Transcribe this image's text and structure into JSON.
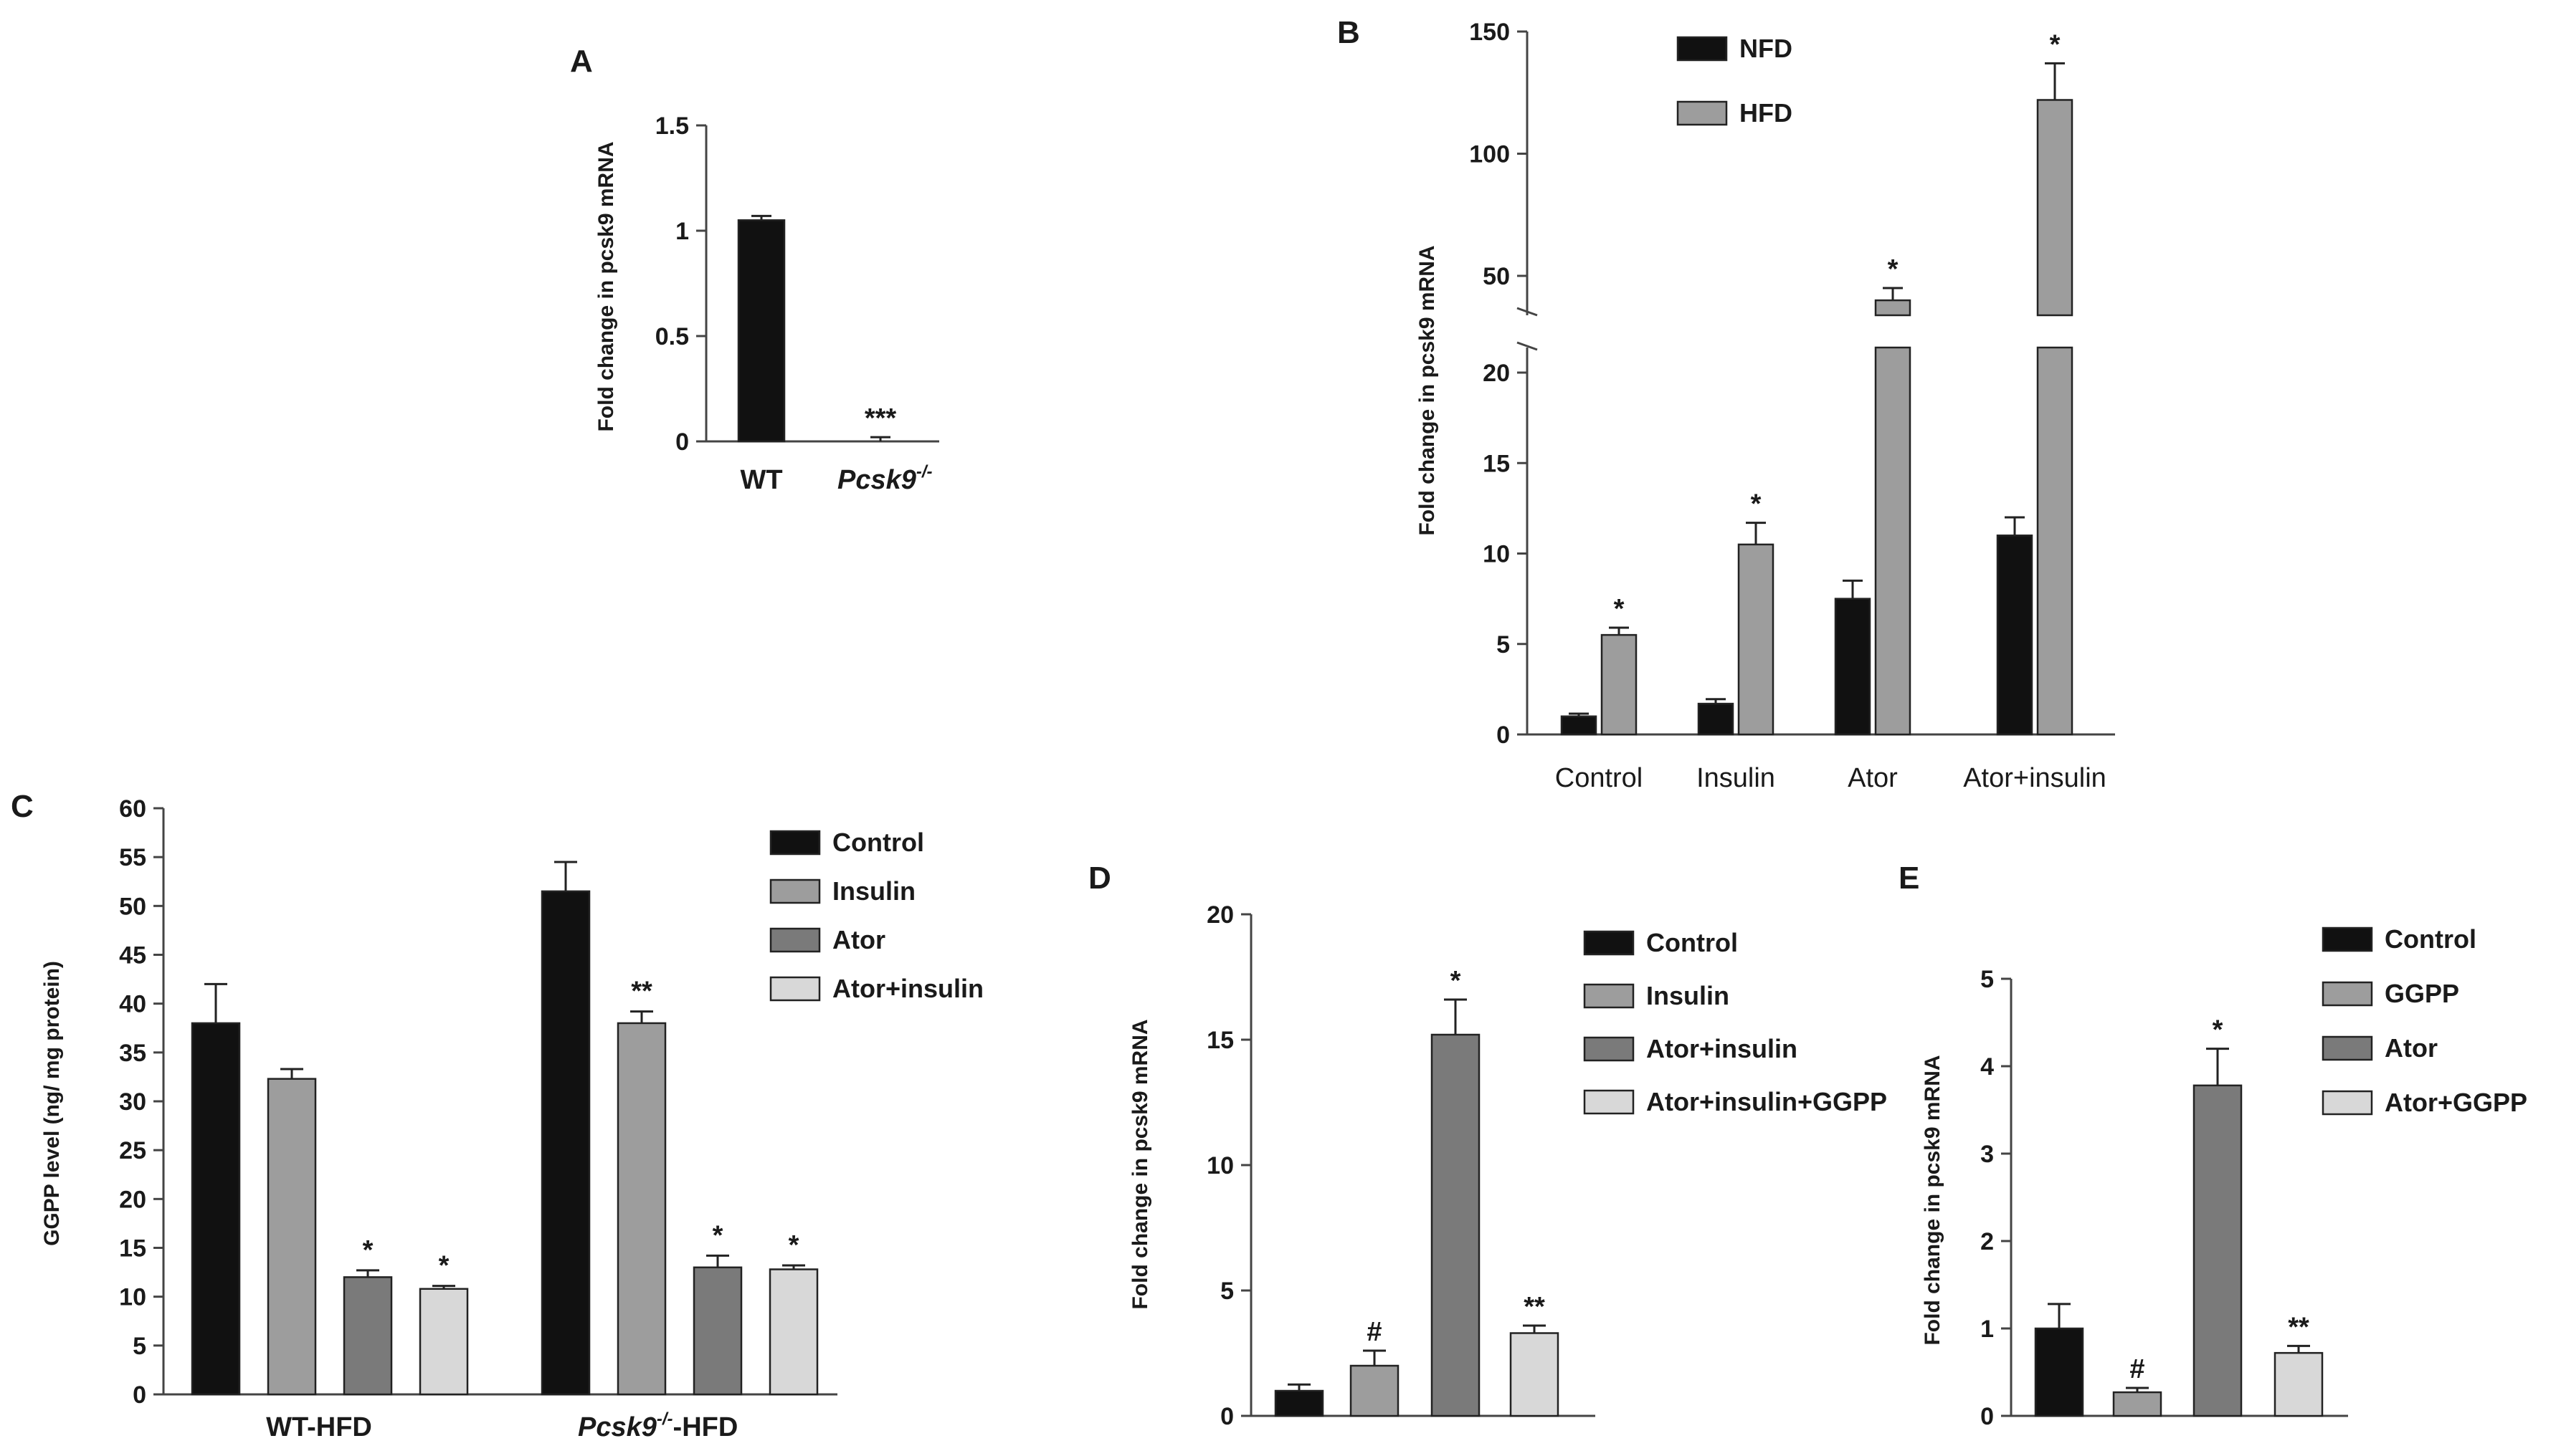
{
  "colors": {
    "black": "#111111",
    "grey_mid": "#9d9d9d",
    "grey_dark": "#7a7a7a",
    "grey_light": "#d8d8d8",
    "axis": "#444444"
  },
  "chart_data": [
    {
      "panel": "A",
      "type": "bar",
      "ylabel": "Fold change in pcsk9 mRNA",
      "ylim": [
        0,
        1.5
      ],
      "yticks": [
        "0",
        "0.5",
        "1",
        "1.5"
      ],
      "categories": [
        "WT",
        "Pcsk9"
      ],
      "category_suffix": [
        "",
        "-/-"
      ],
      "values": [
        1.05,
        0.0
      ],
      "errors": [
        0.02,
        0.02
      ],
      "colors": [
        "#111111",
        "#111111"
      ],
      "annotations": [
        "",
        "***"
      ]
    },
    {
      "panel": "B",
      "type": "bar",
      "ylabel": "Fold change in pcsk9 mRNA",
      "ylim": [
        0,
        150
      ],
      "axis_break": [
        20,
        50
      ],
      "yticks_lower": [
        "0",
        "5",
        "10",
        "15",
        "20"
      ],
      "yticks_upper": [
        "50",
        "100",
        "150"
      ],
      "categories": [
        "Control",
        "Insulin",
        "Ator",
        "Ator+insulin"
      ],
      "series": [
        {
          "name": "NFD",
          "color": "#111111",
          "values": [
            1.0,
            1.7,
            7.5,
            11.0
          ],
          "errors": [
            0.15,
            0.25,
            1.0,
            1.0
          ],
          "annotations": [
            "",
            "",
            "",
            ""
          ]
        },
        {
          "name": "HFD",
          "color": "#9d9d9d",
          "values": [
            5.5,
            10.5,
            40,
            122
          ],
          "errors": [
            0.4,
            1.2,
            5,
            15
          ],
          "annotations": [
            "*",
            "*",
            "*",
            "*"
          ]
        }
      ]
    },
    {
      "panel": "C",
      "type": "bar",
      "ylabel": "GGPP level (ng/ mg protein)",
      "ylim": [
        0,
        60
      ],
      "yticks": [
        "0",
        "5",
        "10",
        "15",
        "20",
        "25",
        "30",
        "35",
        "40",
        "45",
        "50",
        "55",
        "60"
      ],
      "categories": [
        "WT-HFD",
        "Pcsk9"
      ],
      "category_suffix": [
        "",
        "-/-"
      ],
      "category_tail": [
        "",
        "-HFD"
      ],
      "series": [
        {
          "name": "Control",
          "color": "#111111",
          "values": [
            38,
            51.5
          ],
          "errors": [
            4,
            3
          ],
          "annotations": [
            "",
            ""
          ]
        },
        {
          "name": "Insulin",
          "color": "#9d9d9d",
          "values": [
            32.3,
            38
          ],
          "errors": [
            1,
            1.2
          ],
          "annotations": [
            "",
            "**"
          ]
        },
        {
          "name": "Ator",
          "color": "#7a7a7a",
          "values": [
            12,
            13
          ],
          "errors": [
            0.7,
            1.2
          ],
          "annotations": [
            "*",
            "*"
          ]
        },
        {
          "name": "Ator+insulin",
          "color": "#d8d8d8",
          "values": [
            10.8,
            12.8
          ],
          "errors": [
            0.3,
            0.4
          ],
          "annotations": [
            "*",
            "*"
          ]
        }
      ]
    },
    {
      "panel": "D",
      "type": "bar",
      "ylabel": "Fold change in pcsk9 mRNA",
      "ylim": [
        0,
        20
      ],
      "yticks": [
        "0",
        "5",
        "10",
        "15",
        "20"
      ],
      "categories": [
        "Control",
        "Insulin",
        "Ator+insulin",
        "Ator+insulin+GGPP"
      ],
      "values": [
        1.0,
        2.0,
        15.2,
        3.3
      ],
      "errors": [
        0.25,
        0.6,
        1.4,
        0.3
      ],
      "colors": [
        "#111111",
        "#9d9d9d",
        "#7a7a7a",
        "#d8d8d8"
      ],
      "annotations": [
        "",
        "#",
        "*",
        "**"
      ]
    },
    {
      "panel": "E",
      "type": "bar",
      "ylabel": "Fold change in pcsk9 mRNA",
      "ylim": [
        0,
        5
      ],
      "yticks": [
        "0",
        "1",
        "2",
        "3",
        "4",
        "5"
      ],
      "categories": [
        "Control",
        "GGPP",
        "Ator",
        "Ator+GGPP"
      ],
      "values": [
        1.0,
        0.27,
        3.78,
        0.72
      ],
      "errors": [
        0.28,
        0.05,
        0.42,
        0.08
      ],
      "colors": [
        "#111111",
        "#9d9d9d",
        "#7a7a7a",
        "#d8d8d8"
      ],
      "annotations": [
        "",
        "#",
        "*",
        "**"
      ]
    }
  ]
}
